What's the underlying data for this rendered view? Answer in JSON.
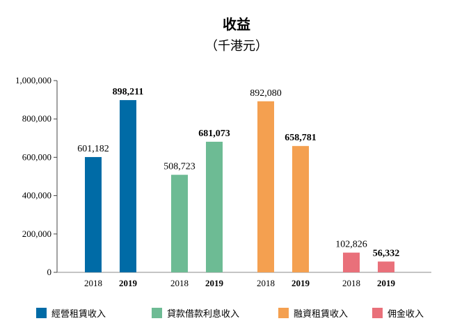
{
  "chart_data": {
    "type": "bar",
    "title": "收益",
    "subtitle": "（千港元）",
    "ylim": [
      0,
      1000000
    ],
    "yticks": [
      0,
      200000,
      400000,
      600000,
      800000,
      1000000
    ],
    "ytick_labels": [
      "0",
      "200,000",
      "400,000",
      "600,000",
      "800,000",
      "1,000,000"
    ],
    "groups": [
      {
        "name": "經營租賃收入",
        "color": "#006BA6",
        "bars": [
          {
            "year": "2018",
            "value": 601182,
            "label": "601,182",
            "bold": false
          },
          {
            "year": "2019",
            "value": 898211,
            "label": "898,211",
            "bold": true
          }
        ]
      },
      {
        "name": "貸款借款利息收入",
        "color": "#6DBB94",
        "bars": [
          {
            "year": "2018",
            "value": 508723,
            "label": "508,723",
            "bold": false
          },
          {
            "year": "2019",
            "value": 681073,
            "label": "681,073",
            "bold": true
          }
        ]
      },
      {
        "name": "融資租賃收入",
        "color": "#F4A050",
        "bars": [
          {
            "year": "2018",
            "value": 892080,
            "label": "892,080",
            "bold": false
          },
          {
            "year": "2019",
            "value": 658781,
            "label": "658,781",
            "bold": true
          }
        ]
      },
      {
        "name": "佣金收入",
        "color": "#E9707A",
        "bars": [
          {
            "year": "2018",
            "value": 102826,
            "label": "102,826",
            "bold": false
          },
          {
            "year": "2019",
            "value": 56332,
            "label": "56,332",
            "bold": true
          }
        ]
      }
    ],
    "legend_position": "bottom"
  }
}
